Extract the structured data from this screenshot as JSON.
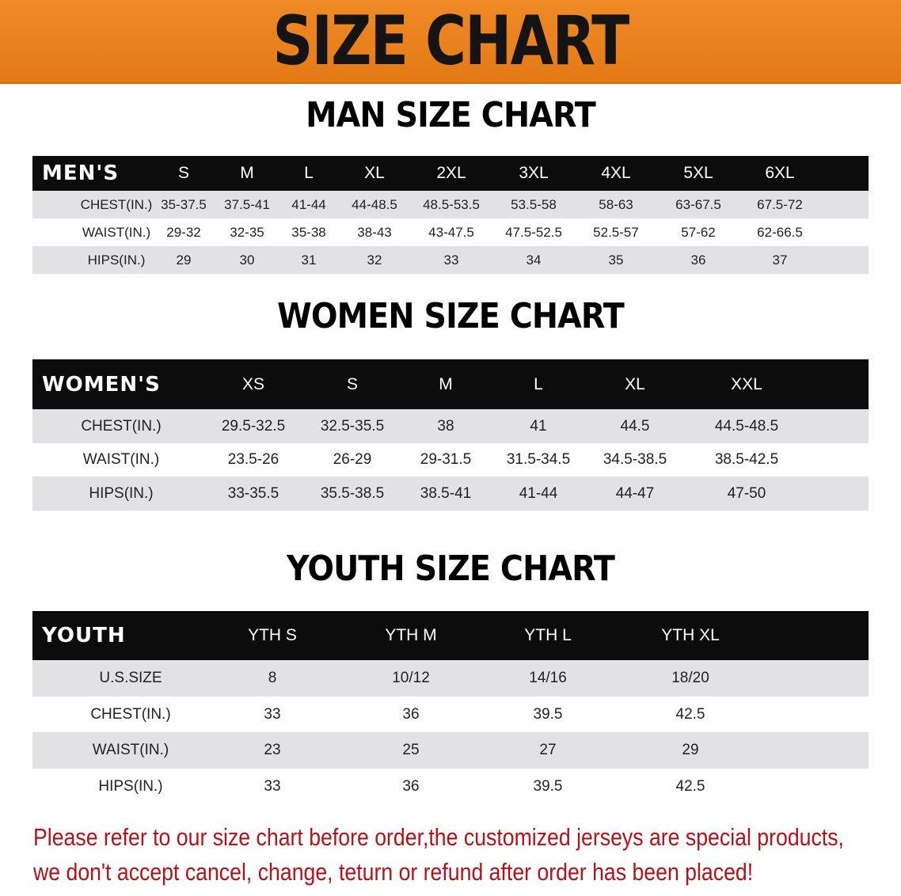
{
  "banner": {
    "title": "SIZE CHART",
    "color": "#e8821c"
  },
  "men": {
    "title": "MAN SIZE CHART",
    "headers": [
      "MEN'S",
      "S",
      "M",
      "L",
      "XL",
      "2XL",
      "3XL",
      "4XL",
      "5XL",
      "6XL"
    ],
    "rows": [
      [
        "CHEST(IN.)",
        "35-37.5",
        "37.5-41",
        "41-44",
        "44-48.5",
        "48.5-53.5",
        "53.5-58",
        "58-63",
        "63-67.5",
        "67.5-72"
      ],
      [
        "WAIST(IN.)",
        "29-32",
        "32-35",
        "35-38",
        "38-43",
        "43-47.5",
        "47.5-52.5",
        "52.5-57",
        "57-62",
        "62-66.5"
      ],
      [
        "HIPS(IN.)",
        "29",
        "30",
        "31",
        "32",
        "33",
        "34",
        "35",
        "36",
        "37"
      ]
    ]
  },
  "women": {
    "title": "WOMEN SIZE CHART",
    "headers": [
      "WOMEN'S",
      "XS",
      "S",
      "M",
      "L",
      "XL",
      "XXL"
    ],
    "rows": [
      [
        "CHEST(IN.)",
        "29.5-32.5",
        "32.5-35.5",
        "38",
        "41",
        "44.5",
        "44.5-48.5"
      ],
      [
        "WAIST(IN.)",
        "23.5-26",
        "26-29",
        "29-31.5",
        "31.5-34.5",
        "34.5-38.5",
        "38.5-42.5"
      ],
      [
        "HIPS(IN.)",
        "33-35.5",
        "35.5-38.5",
        "38.5-41",
        "41-44",
        "44-47",
        "47-50"
      ]
    ]
  },
  "youth": {
    "title": "YOUTH SIZE CHART",
    "headers": [
      "YOUTH",
      "YTH S",
      "YTH M",
      "YTH L",
      "YTH XL"
    ],
    "rows": [
      [
        "U.S.SIZE",
        "8",
        "10/12",
        "14/16",
        "18/20"
      ],
      [
        "CHEST(IN.)",
        "33",
        "36",
        "39.5",
        "42.5"
      ],
      [
        "WAIST(IN.)",
        "23",
        "25",
        "27",
        "29"
      ],
      [
        "HIPS(IN.)",
        "33",
        "36",
        "39.5",
        "42.5"
      ]
    ]
  },
  "notice": {
    "line1": "Please refer to our size chart before order,the customized jerseys are special products,",
    "line2": "we don't accept cancel, change, teturn or refund after order has been placed!",
    "color": "#b0141a"
  }
}
